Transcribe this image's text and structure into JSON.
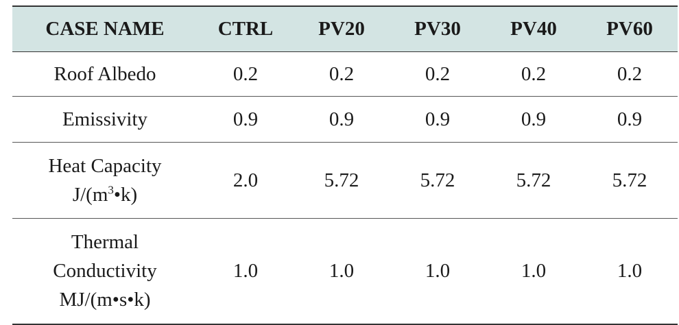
{
  "table": {
    "headers": [
      "CASE NAME",
      "CTRL",
      "PV20",
      "PV30",
      "PV40",
      "PV60"
    ],
    "rows": [
      {
        "label": [
          "Roof Albedo"
        ],
        "values": [
          "0.2",
          "0.2",
          "0.2",
          "0.2",
          "0.2"
        ]
      },
      {
        "label": [
          "Emissivity"
        ],
        "values": [
          "0.9",
          "0.9",
          "0.9",
          "0.9",
          "0.9"
        ]
      },
      {
        "label": [
          "Heat Capacity"
        ],
        "unit": {
          "pre": "J/(m",
          "sup": "3",
          "post": "•k)"
        },
        "values": [
          "2.0",
          "5.72",
          "5.72",
          "5.72",
          "5.72"
        ]
      },
      {
        "label": [
          "Thermal",
          "Conductivity",
          "MJ/(m•s•k)"
        ],
        "values": [
          "1.0",
          "1.0",
          "1.0",
          "1.0",
          "1.0"
        ]
      }
    ]
  }
}
